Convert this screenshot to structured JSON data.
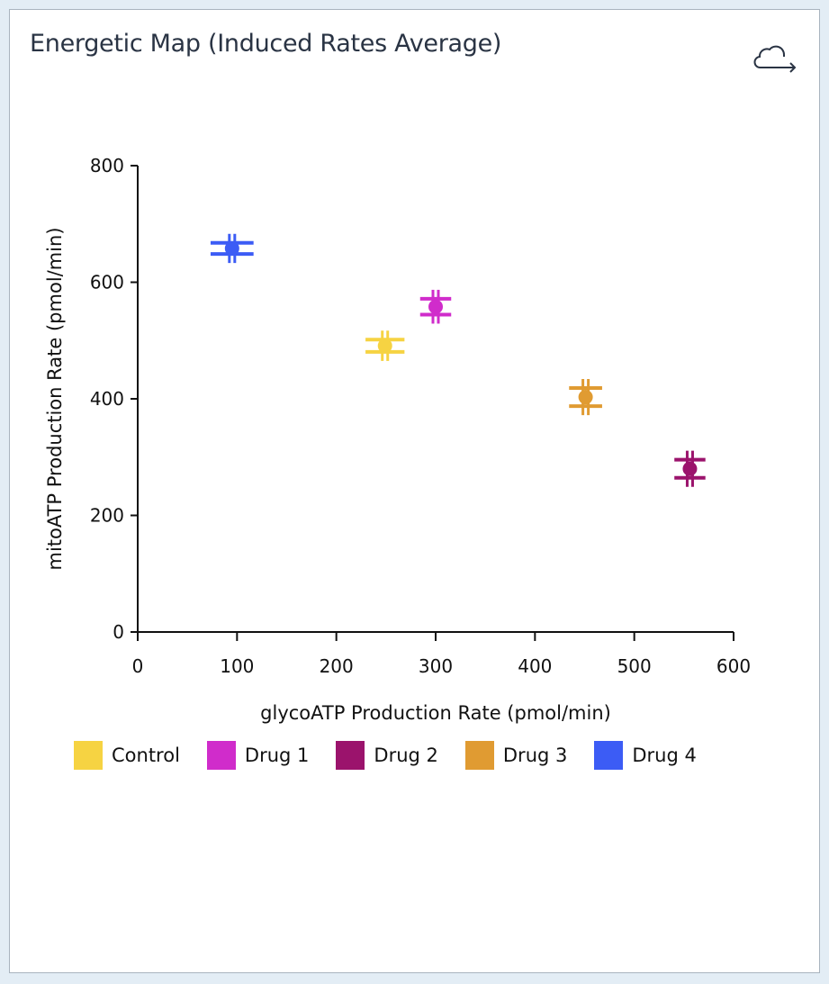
{
  "panel": {
    "title": "Energetic Map (Induced Rates Average)",
    "export_icon": "cloud-export-icon"
  },
  "chart_data": {
    "type": "scatter",
    "title": "Energetic Map (Induced Rates Average)",
    "xlabel": "glycoATP Production Rate (pmol/min)",
    "ylabel": "mitoATP Production Rate (pmol/min)",
    "xlim": [
      0,
      600
    ],
    "ylim": [
      0,
      800
    ],
    "xticks": [
      "0",
      "100",
      "200",
      "300",
      "400",
      "500",
      "600"
    ],
    "yticks": [
      "0",
      "200",
      "400",
      "600",
      "800"
    ],
    "grid": false,
    "legend_position": "bottom",
    "series": [
      {
        "name": "Control",
        "color": "#f6d342",
        "x": 249,
        "y": 491,
        "x_err": 16,
        "y_err": 26
      },
      {
        "name": "Drug 1",
        "color": "#d02ccb",
        "x": 300,
        "y": 558,
        "x_err": 12,
        "y_err": 29
      },
      {
        "name": "Drug 2",
        "color": "#9b136c",
        "x": 556,
        "y": 280,
        "x_err": 12,
        "y_err": 31
      },
      {
        "name": "Drug 3",
        "color": "#e09b32",
        "x": 451,
        "y": 403,
        "x_err": 13,
        "y_err": 31
      },
      {
        "name": "Drug 4",
        "color": "#3c5cf5",
        "x": 95,
        "y": 658,
        "x_err": 18,
        "y_err": 25
      }
    ]
  }
}
